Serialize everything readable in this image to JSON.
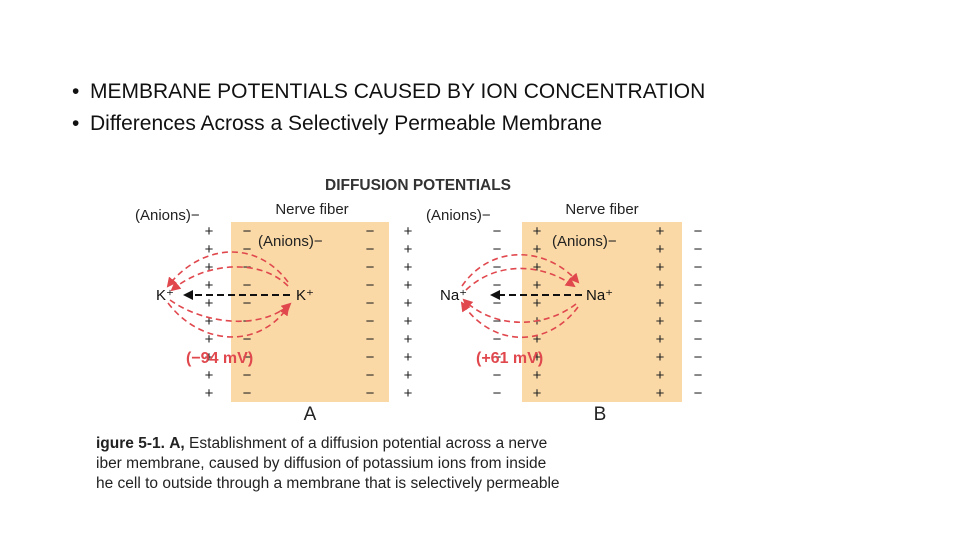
{
  "bullets": [
    "MEMBRANE POTENTIALS CAUSED BY ION CONCENTRATION",
    "Differences Across a Selectively Permeable Membrane"
  ],
  "figure": {
    "title": "DIFFUSION POTENTIALS",
    "panelA": {
      "anions_outside": "(Anions)−",
      "nerve_fiber": "Nerve fiber",
      "anions_inside": "(Anions)−",
      "ion_out": "K⁺",
      "ion_in": "K⁺",
      "potential": "(−94 mV)",
      "letter": "A"
    },
    "panelB": {
      "anions_outside": "(Anions)−",
      "nerve_fiber": "Nerve fiber",
      "anions_inside": "(Anions)−",
      "ion_out": "Na⁺",
      "ion_in": "Na⁺",
      "potential": "(+61 mV)",
      "letter": "B"
    },
    "colors": {
      "fiber": "#fad9a6",
      "arrow_red": "#e0484e",
      "potential_red": "#e0484e"
    }
  },
  "caption": {
    "label": "igure 5-1.",
    "letter": "A,",
    "line1": "Establishment of a diffusion potential across a nerve",
    "line2": "iber membrane, caused by diffusion of potassium ions from inside",
    "line3": "he cell to outside through a membrane that is selectively permeable"
  }
}
